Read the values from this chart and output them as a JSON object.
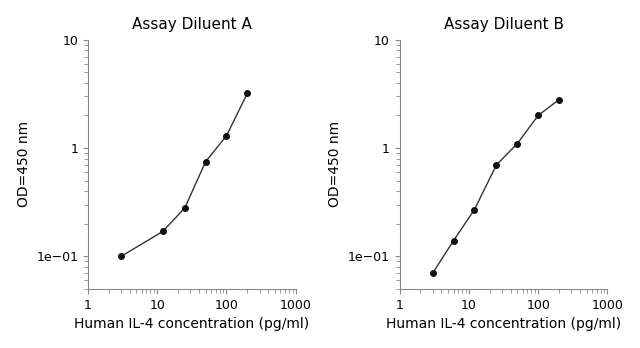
{
  "panel_A": {
    "title": "Assay Diluent A",
    "x": [
      3,
      12,
      25,
      50,
      100,
      200
    ],
    "y": [
      0.1,
      0.17,
      0.28,
      0.75,
      1.3,
      3.2
    ]
  },
  "panel_B": {
    "title": "Assay Diluent B",
    "x": [
      3,
      6,
      12,
      25,
      50,
      100,
      200
    ],
    "y": [
      0.07,
      0.14,
      0.27,
      0.7,
      1.1,
      2.0,
      2.8
    ]
  },
  "xlabel": "Human IL-4 concentration (pg/ml)",
  "ylabel": "OD=450 nm",
  "xlim": [
    1,
    1000
  ],
  "ylim": [
    0.05,
    10
  ],
  "line_color": "#333333",
  "marker": "o",
  "marker_color": "#111111",
  "marker_size": 4,
  "title_fontsize": 11,
  "label_fontsize": 10,
  "tick_fontsize": 9,
  "background_color": "#ffffff"
}
